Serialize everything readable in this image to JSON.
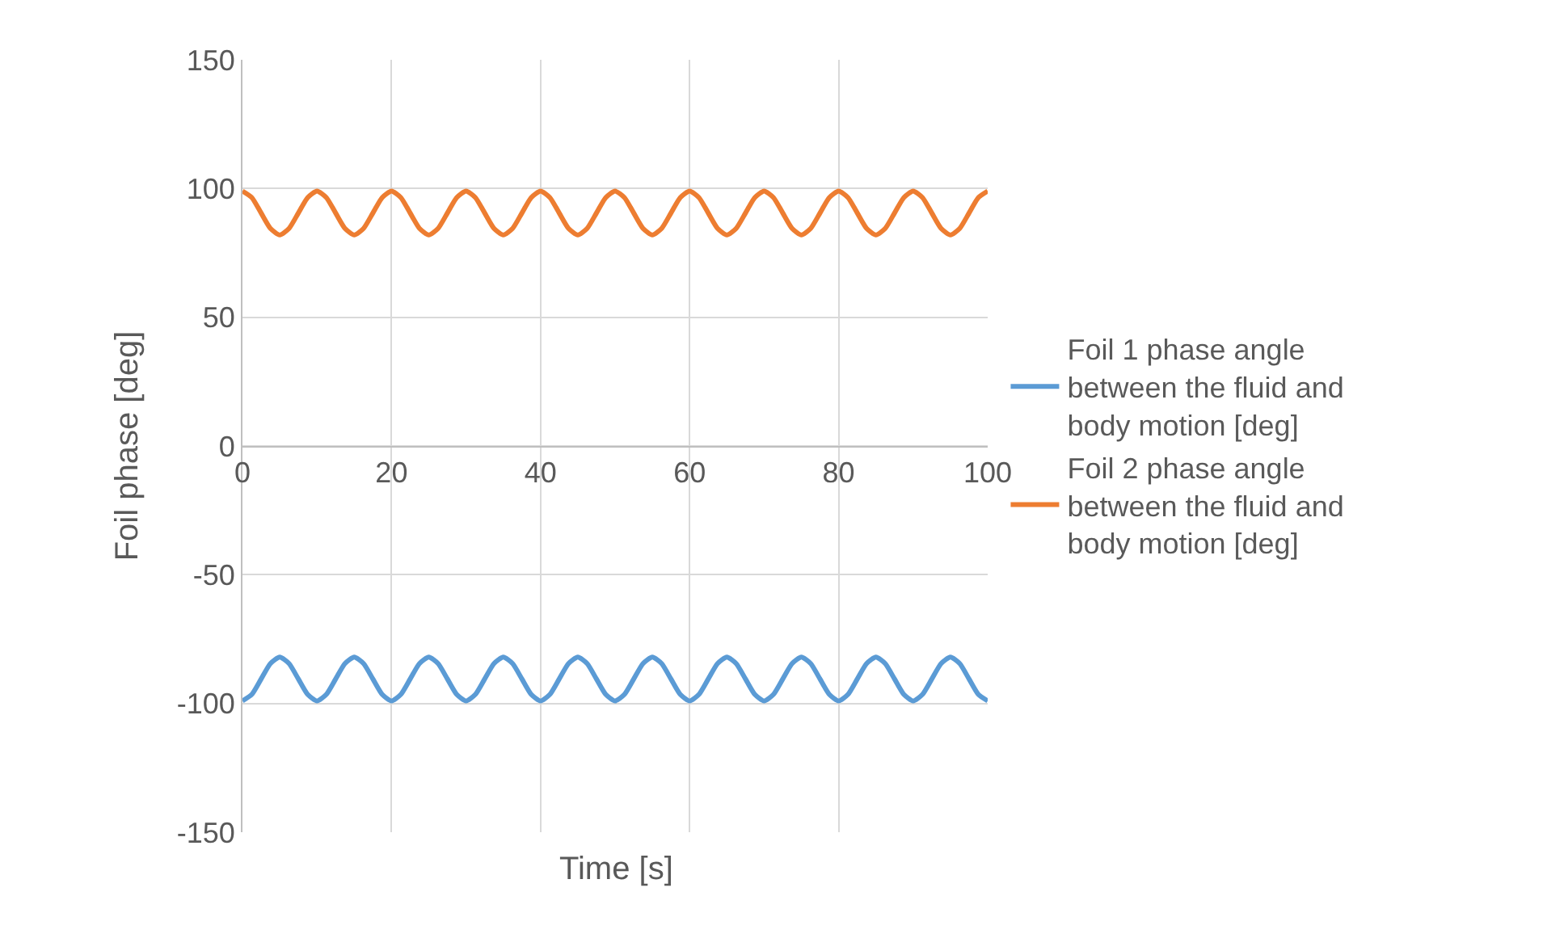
{
  "chart_data": {
    "type": "line",
    "xlabel": "Time [s]",
    "ylabel": "Foil phase [deg]",
    "x": [
      0,
      1.25,
      2.5,
      3.75,
      5,
      6.25,
      7.5,
      8.75,
      10,
      11.25,
      12.5,
      13.75,
      15,
      16.25,
      17.5,
      18.75,
      20,
      21.25,
      22.5,
      23.75,
      25,
      26.25,
      27.5,
      28.75,
      30,
      31.25,
      32.5,
      33.75,
      35,
      36.25,
      37.5,
      38.75,
      40,
      41.25,
      42.5,
      43.75,
      45,
      46.25,
      47.5,
      48.75,
      50,
      51.25,
      52.5,
      53.75,
      55,
      56.25,
      57.5,
      58.75,
      60,
      61.25,
      62.5,
      63.75,
      65,
      66.25,
      67.5,
      68.75,
      70,
      71.25,
      72.5,
      73.75,
      75,
      76.25,
      77.5,
      78.75,
      80,
      81.25,
      82.5,
      83.75,
      85,
      86.25,
      87.5,
      88.75,
      90,
      91.25,
      92.5,
      93.75,
      95,
      96.25,
      97.5,
      98.75,
      100
    ],
    "series": [
      {
        "name": "Foil 1 phase angle between the fluid and body motion [deg]",
        "color": "#5b9bd5",
        "values": [
          -99,
          -96.5,
          -90.5,
          -84.5,
          -82,
          -84.5,
          -90.5,
          -96.5,
          -99,
          -96.5,
          -90.5,
          -84.5,
          -82,
          -84.5,
          -90.5,
          -96.5,
          -99,
          -96.5,
          -90.5,
          -84.5,
          -82,
          -84.5,
          -90.5,
          -96.5,
          -99,
          -96.5,
          -90.5,
          -84.5,
          -82,
          -84.5,
          -90.5,
          -96.5,
          -99,
          -96.5,
          -90.5,
          -84.5,
          -82,
          -84.5,
          -90.5,
          -96.5,
          -99,
          -96.5,
          -90.5,
          -84.5,
          -82,
          -84.5,
          -90.5,
          -96.5,
          -99,
          -96.5,
          -90.5,
          -84.5,
          -82,
          -84.5,
          -90.5,
          -96.5,
          -99,
          -96.5,
          -90.5,
          -84.5,
          -82,
          -84.5,
          -90.5,
          -96.5,
          -99,
          -96.5,
          -90.5,
          -84.5,
          -82,
          -84.5,
          -90.5,
          -96.5,
          -99,
          -96.5,
          -90.5,
          -84.5,
          -82,
          -84.5,
          -90.5,
          -96.5,
          -99
        ]
      },
      {
        "name": "Foil 2 phase angle between the fluid and body motion [deg]",
        "color": "#ed7d31",
        "values": [
          99,
          96.5,
          90.5,
          84.5,
          82,
          84.5,
          90.5,
          96.5,
          99,
          96.5,
          90.5,
          84.5,
          82,
          84.5,
          90.5,
          96.5,
          99,
          96.5,
          90.5,
          84.5,
          82,
          84.5,
          90.5,
          96.5,
          99,
          96.5,
          90.5,
          84.5,
          82,
          84.5,
          90.5,
          96.5,
          99,
          96.5,
          90.5,
          84.5,
          82,
          84.5,
          90.5,
          96.5,
          99,
          96.5,
          90.5,
          84.5,
          82,
          84.5,
          90.5,
          96.5,
          99,
          96.5,
          90.5,
          84.5,
          82,
          84.5,
          90.5,
          96.5,
          99,
          96.5,
          90.5,
          84.5,
          82,
          84.5,
          90.5,
          96.5,
          99,
          96.5,
          90.5,
          84.5,
          82,
          84.5,
          90.5,
          96.5,
          99,
          96.5,
          90.5,
          84.5,
          82,
          84.5,
          90.5,
          96.5,
          99
        ]
      }
    ],
    "xlim": [
      0,
      100
    ],
    "xticks": [
      0,
      20,
      40,
      60,
      80,
      100
    ],
    "ylim": [
      -150,
      150
    ],
    "yticks": [
      -150,
      -100,
      -50,
      0,
      50,
      100,
      150
    ],
    "grid": true,
    "legend": "right",
    "marker": "none",
    "line_style": "solid"
  }
}
